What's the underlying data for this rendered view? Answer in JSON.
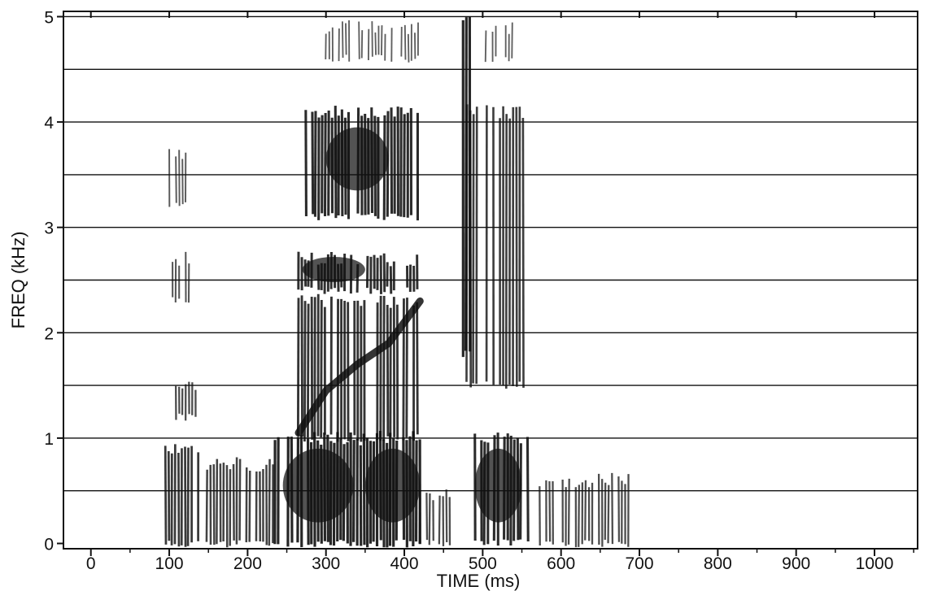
{
  "chart_data": {
    "type": "heatmap",
    "subtype": "spectrogram",
    "title": "",
    "xlabel": "TIME  (ms)",
    "ylabel": "FREQ  (kHz)",
    "xlim": [
      -35,
      1055
    ],
    "ylim": [
      -0.05,
      5.05
    ],
    "x_ticks": [
      0,
      100,
      200,
      300,
      400,
      500,
      600,
      700,
      800,
      900,
      1000
    ],
    "x_minor_ticks": [
      50,
      150,
      250,
      350,
      450,
      550,
      650,
      750,
      850,
      950,
      1050
    ],
    "y_ticks": [
      0,
      1,
      2,
      3,
      4,
      5
    ],
    "y_gridlines_khz": [
      0.5,
      1.0,
      1.5,
      2.0,
      2.5,
      3.0,
      3.5,
      4.0,
      4.5,
      5.0
    ],
    "grid": "horizontal",
    "colors": {
      "ink": "#111111",
      "background": "#ffffff"
    },
    "segments": [
      {
        "name": "",
        "t_start_ms": 95,
        "t_end_ms": 140,
        "f_min_khz": 0.0,
        "f_max_khz": 0.9,
        "intensity": 0.7
      },
      {
        "name": "",
        "t_start_ms": 100,
        "t_end_ms": 135,
        "f_min_khz": 1.2,
        "f_max_khz": 1.5,
        "intensity": 0.5
      },
      {
        "name": "",
        "t_start_ms": 100,
        "t_end_ms": 135,
        "f_min_khz": 2.3,
        "f_max_khz": 2.7,
        "intensity": 0.4
      },
      {
        "name": "",
        "t_start_ms": 100,
        "t_end_ms": 130,
        "f_min_khz": 3.2,
        "f_max_khz": 3.7,
        "intensity": 0.35
      },
      {
        "name": "",
        "t_start_ms": 140,
        "t_end_ms": 235,
        "f_min_khz": 0.0,
        "f_max_khz": 0.75,
        "intensity": 0.6
      },
      {
        "name": "",
        "t_start_ms": 235,
        "t_end_ms": 420,
        "f_min_khz": 0.0,
        "f_max_khz": 1.0,
        "intensity": 0.9
      },
      {
        "name": "",
        "t_start_ms": 265,
        "t_end_ms": 420,
        "f_min_khz": 1.0,
        "f_max_khz": 2.3,
        "intensity": 0.75
      },
      {
        "name": "",
        "t_start_ms": 265,
        "t_end_ms": 420,
        "f_min_khz": 2.4,
        "f_max_khz": 2.7,
        "intensity": 0.8
      },
      {
        "name": "",
        "t_start_ms": 270,
        "t_end_ms": 420,
        "f_min_khz": 3.1,
        "f_max_khz": 4.1,
        "intensity": 0.85
      },
      {
        "name": "",
        "t_start_ms": 420,
        "t_end_ms": 460,
        "f_min_khz": 0.0,
        "f_max_khz": 0.45,
        "intensity": 0.5
      },
      {
        "name": "",
        "t_start_ms": 475,
        "t_end_ms": 485,
        "f_min_khz": 1.8,
        "f_max_khz": 5.0,
        "intensity": 0.9
      },
      {
        "name": "",
        "t_start_ms": 480,
        "t_end_ms": 555,
        "f_min_khz": 1.5,
        "f_max_khz": 4.1,
        "intensity": 0.65
      },
      {
        "name": "",
        "t_start_ms": 490,
        "t_end_ms": 560,
        "f_min_khz": 0.0,
        "f_max_khz": 1.0,
        "intensity": 0.85
      },
      {
        "name": "",
        "t_start_ms": 560,
        "t_end_ms": 690,
        "f_min_khz": 0.0,
        "f_max_khz": 0.6,
        "intensity": 0.5
      },
      {
        "name": "",
        "t_start_ms": 300,
        "t_end_ms": 420,
        "f_min_khz": 4.6,
        "f_max_khz": 4.9,
        "intensity": 0.3
      },
      {
        "name": "",
        "t_start_ms": 500,
        "t_end_ms": 550,
        "f_min_khz": 4.6,
        "f_max_khz": 4.9,
        "intensity": 0.3
      }
    ],
    "formant_track": {
      "name": "",
      "points": [
        [
          265,
          1.05
        ],
        [
          300,
          1.45
        ],
        [
          340,
          1.7
        ],
        [
          380,
          1.9
        ],
        [
          420,
          2.3
        ]
      ]
    },
    "dark_blobs": [
      {
        "t_ms": 340,
        "f_khz": 3.65,
        "rx_ms": 40,
        "ry_khz": 0.3
      },
      {
        "t_ms": 290,
        "f_khz": 0.55,
        "rx_ms": 45,
        "ry_khz": 0.35
      },
      {
        "t_ms": 385,
        "f_khz": 0.55,
        "rx_ms": 35,
        "ry_khz": 0.35
      },
      {
        "t_ms": 520,
        "f_khz": 0.55,
        "rx_ms": 30,
        "ry_khz": 0.35
      },
      {
        "t_ms": 310,
        "f_khz": 2.6,
        "rx_ms": 40,
        "ry_khz": 0.12
      }
    ]
  }
}
